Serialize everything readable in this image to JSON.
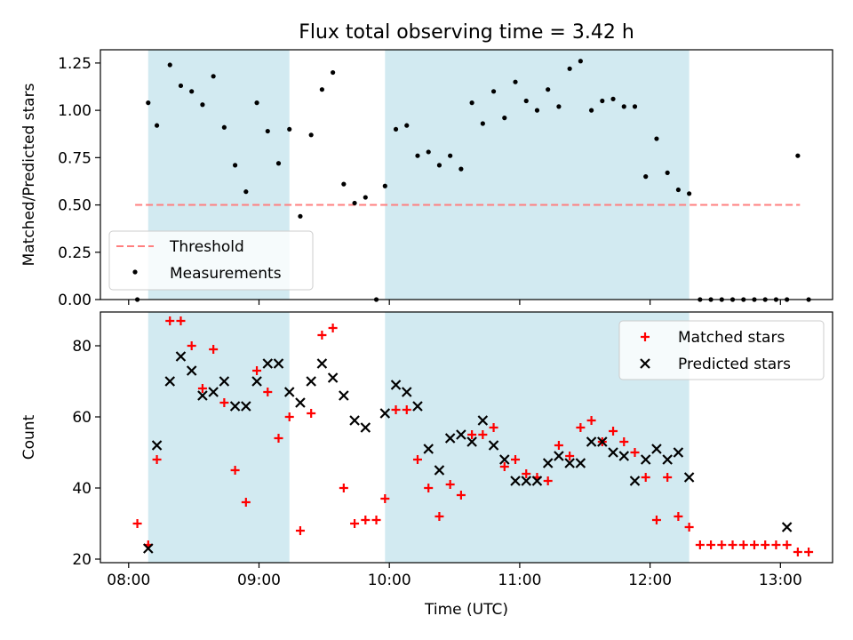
{
  "title": "Flux total observing time = 3.42 h",
  "colors": {
    "band": "#add8e6",
    "threshold": "#ff7f7f",
    "measurement": "#000000",
    "matched": "#ff0000",
    "predicted": "#000000"
  },
  "chart_data": [
    {
      "type": "scatter",
      "panel": "top",
      "title": "Flux total observing time = 3.42 h",
      "xlabel": "",
      "ylabel": "Matched/Predicted stars",
      "xlim": [
        "07:47",
        "13:24"
      ],
      "ylim": [
        0,
        1.32
      ],
      "yticks": [
        "0.00",
        "0.25",
        "0.50",
        "0.75",
        "1.00",
        "1.25"
      ],
      "xticks": [
        "08:00",
        "09:00",
        "10:00",
        "11:00",
        "12:00",
        "13:00"
      ],
      "grid": false,
      "legend_position": "lower-left",
      "shaded_intervals": [
        [
          "08:09",
          "09:14"
        ],
        [
          "09:58",
          "12:18"
        ]
      ],
      "threshold": {
        "name": "Threshold",
        "y": 0.5,
        "x_start": "08:03",
        "x_end": "13:09"
      },
      "series": [
        {
          "name": "Measurements",
          "x": [
            "08:04",
            "08:09",
            "08:13",
            "08:19",
            "08:24",
            "08:29",
            "08:34",
            "08:39",
            "08:44",
            "08:49",
            "08:54",
            "08:59",
            "09:04",
            "09:09",
            "09:14",
            "09:19",
            "09:24",
            "09:29",
            "09:34",
            "09:39",
            "09:44",
            "09:49",
            "09:54",
            "09:58",
            "10:03",
            "10:08",
            "10:13",
            "10:18",
            "10:23",
            "10:28",
            "10:33",
            "10:38",
            "10:43",
            "10:48",
            "10:53",
            "10:58",
            "11:03",
            "11:08",
            "11:13",
            "11:18",
            "11:23",
            "11:28",
            "11:33",
            "11:38",
            "11:43",
            "11:48",
            "11:53",
            "11:58",
            "12:03",
            "12:08",
            "12:13",
            "12:18",
            "12:23",
            "12:28",
            "12:33",
            "12:38",
            "12:43",
            "12:48",
            "12:53",
            "12:58",
            "13:03",
            "13:08",
            "13:13"
          ],
          "y": [
            0.0,
            1.04,
            0.92,
            1.24,
            1.13,
            1.1,
            1.03,
            1.18,
            0.91,
            0.71,
            0.57,
            1.04,
            0.89,
            0.72,
            0.9,
            0.44,
            0.87,
            1.11,
            1.2,
            0.61,
            0.51,
            0.54,
            0.0,
            0.6,
            0.9,
            0.92,
            0.76,
            0.78,
            0.71,
            0.76,
            0.69,
            1.04,
            0.93,
            1.1,
            0.96,
            1.15,
            1.05,
            1.0,
            1.11,
            1.02,
            1.22,
            1.26,
            1.0,
            1.05,
            1.06,
            1.02,
            1.02,
            0.65,
            0.85,
            0.67,
            0.58,
            0.56,
            0.0,
            0.0,
            0.0,
            0.0,
            0.0,
            0.0,
            0.0,
            0.0,
            0.0,
            0.76,
            0.0
          ]
        }
      ]
    },
    {
      "type": "scatter",
      "panel": "bottom",
      "xlabel": "Time (UTC)",
      "ylabel": "Count",
      "xlim": [
        "07:47",
        "13:24"
      ],
      "ylim": [
        19,
        89.5
      ],
      "yticks": [
        "20",
        "40",
        "60",
        "80"
      ],
      "xticks": [
        "08:00",
        "09:00",
        "10:00",
        "11:00",
        "12:00",
        "13:00"
      ],
      "grid": false,
      "legend_position": "upper-right",
      "shaded_intervals": [
        [
          "08:09",
          "09:14"
        ],
        [
          "09:58",
          "12:18"
        ]
      ],
      "series": [
        {
          "name": "Matched stars",
          "marker": "plus",
          "x": [
            "08:04",
            "08:09",
            "08:13",
            "08:19",
            "08:24",
            "08:29",
            "08:34",
            "08:39",
            "08:44",
            "08:49",
            "08:54",
            "08:59",
            "09:04",
            "09:09",
            "09:14",
            "09:19",
            "09:24",
            "09:29",
            "09:34",
            "09:39",
            "09:44",
            "09:49",
            "09:54",
            "09:58",
            "10:03",
            "10:08",
            "10:13",
            "10:18",
            "10:23",
            "10:28",
            "10:33",
            "10:38",
            "10:43",
            "10:48",
            "10:53",
            "10:58",
            "11:03",
            "11:08",
            "11:13",
            "11:18",
            "11:23",
            "11:28",
            "11:33",
            "11:38",
            "11:43",
            "11:48",
            "11:53",
            "11:58",
            "12:03",
            "12:08",
            "12:13",
            "12:18",
            "12:23",
            "12:28",
            "12:33",
            "12:38",
            "12:43",
            "12:48",
            "12:53",
            "12:58",
            "13:03",
            "13:08",
            "13:13"
          ],
          "y": [
            30,
            24,
            48,
            87,
            87,
            80,
            68,
            79,
            64,
            45,
            36,
            73,
            67,
            54,
            60,
            28,
            61,
            83,
            85,
            40,
            30,
            31,
            31,
            37,
            62,
            62,
            48,
            40,
            32,
            41,
            38,
            55,
            55,
            57,
            46,
            48,
            44,
            43,
            42,
            52,
            49,
            57,
            59,
            53,
            56,
            53,
            50,
            43,
            31,
            43,
            32,
            29,
            24,
            24,
            24,
            24,
            24,
            24,
            24,
            24,
            24,
            22,
            22
          ]
        },
        {
          "name": "Predicted stars",
          "marker": "x",
          "x": [
            "08:09",
            "08:13",
            "08:19",
            "08:24",
            "08:29",
            "08:34",
            "08:39",
            "08:44",
            "08:49",
            "08:54",
            "08:59",
            "09:04",
            "09:09",
            "09:14",
            "09:19",
            "09:24",
            "09:29",
            "09:34",
            "09:39",
            "09:44",
            "09:49",
            "09:58",
            "10:03",
            "10:08",
            "10:13",
            "10:18",
            "10:23",
            "10:28",
            "10:33",
            "10:38",
            "10:43",
            "10:48",
            "10:53",
            "10:58",
            "11:03",
            "11:08",
            "11:13",
            "11:18",
            "11:23",
            "11:28",
            "11:33",
            "11:38",
            "11:43",
            "11:48",
            "11:53",
            "11:58",
            "12:03",
            "12:08",
            "12:13",
            "12:18",
            "13:03"
          ],
          "y": [
            23,
            52,
            70,
            77,
            73,
            66,
            67,
            70,
            63,
            63,
            70,
            75,
            75,
            67,
            64,
            70,
            75,
            71,
            66,
            59,
            57,
            61,
            69,
            67,
            63,
            51,
            45,
            54,
            55,
            53,
            59,
            52,
            48,
            42,
            42,
            42,
            47,
            49,
            47,
            47,
            53,
            53,
            50,
            49,
            42,
            48,
            51,
            48,
            50,
            43,
            29
          ]
        }
      ]
    }
  ]
}
